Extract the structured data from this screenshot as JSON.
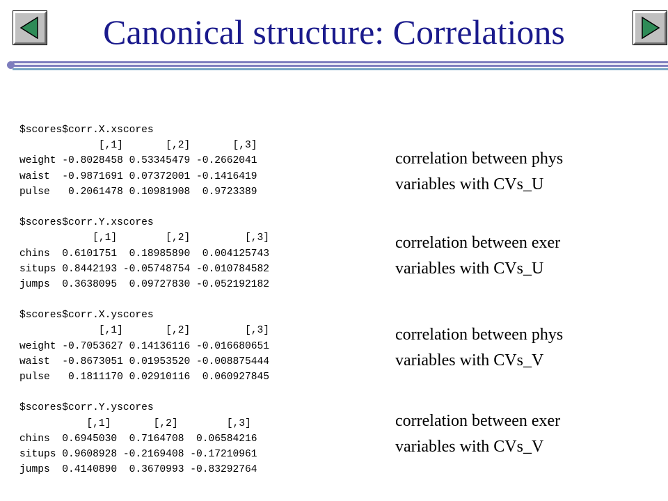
{
  "slide": {
    "title": "Canonical structure: Correlations",
    "nav": {
      "prev_icon": "triangle-left-icon",
      "next_icon": "triangle-right-icon",
      "icon_color": "#2e8b57",
      "button_color": "#c0c0c0"
    },
    "colors": {
      "title": "#1a1a8c",
      "rule_primary": "#7d7dbd",
      "rule_secondary": "#7aa6c4"
    }
  },
  "code_lines": [
    "$scores$corr.X.xscores",
    "             [,1]       [,2]       [,3]",
    "weight -0.8028458 0.53345479 -0.2662041",
    "waist  -0.9871691 0.07372001 -0.1416419",
    "pulse   0.2061478 0.10981908  0.9723389",
    "",
    "$scores$corr.Y.xscores",
    "            [,1]        [,2]         [,3]",
    "chins  0.6101751  0.18985890  0.004125743",
    "situps 0.8442193 -0.05748754 -0.010784582",
    "jumps  0.3638095  0.09727830 -0.052192182",
    "",
    "$scores$corr.X.yscores",
    "             [,1]       [,2]         [,3]",
    "weight -0.7053627 0.14136116 -0.016680651",
    "waist  -0.8673051 0.01953520 -0.008875444",
    "pulse   0.1811170 0.02910116  0.060927845",
    "",
    "$scores$corr.Y.yscores",
    "           [,1]       [,2]        [,3]",
    "chins  0.6945030  0.7164708  0.06584216",
    "situps 0.9608928 -0.2169408 -0.17210961",
    "jumps  0.4140890  0.3670993 -0.83292764"
  ],
  "notes": [
    {
      "line1": "correlation between phys",
      "line2": "variables with CVs_U"
    },
    {
      "line1": "correlation between exer",
      "line2": "variables with CVs_U"
    },
    {
      "line1": "correlation between phys",
      "line2": "variables with CVs_V"
    },
    {
      "line1": "correlation between exer",
      "line2": "variables with CVs_V"
    }
  ]
}
